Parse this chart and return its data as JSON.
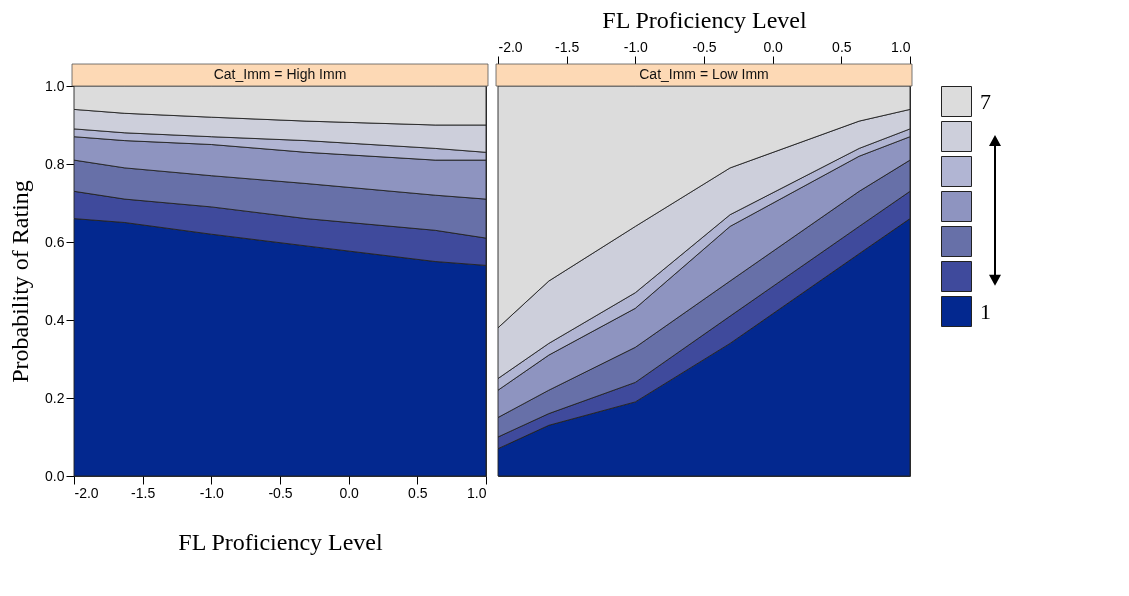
{
  "chart_data": [
    {
      "type": "area",
      "title": "Cat_Imm = High Imm",
      "xlabel": "FL Proficiency Level",
      "ylabel": "Probability of Rating",
      "stacked": true,
      "x": [
        -2,
        -1.63,
        -1,
        -0.31,
        0.63,
        1
      ],
      "xlim": [
        -2,
        1
      ],
      "xticks": [
        {
          "value": -2,
          "label": "-2.0"
        },
        {
          "value": -1.5,
          "label": "-1.5"
        },
        {
          "value": -1,
          "label": "-1.0"
        },
        {
          "value": -0.5,
          "label": "-0.5"
        },
        {
          "value": 0,
          "label": "0.0"
        },
        {
          "value": 0.5,
          "label": "0.5"
        },
        {
          "value": 1,
          "label": "1.0"
        }
      ],
      "ylim": [
        0,
        1
      ],
      "yticks": [
        {
          "value": 0,
          "label": "0.0"
        },
        {
          "value": 0.2,
          "label": "0.2"
        },
        {
          "value": 0.4,
          "label": "0.4"
        },
        {
          "value": 0.6,
          "label": "0.6"
        },
        {
          "value": 0.8,
          "label": "0.8"
        },
        {
          "value": 1,
          "label": "1.0"
        }
      ],
      "series": [
        {
          "color": "#03288f",
          "values": [
            0.66,
            0.65,
            0.62,
            0.59,
            0.55,
            0.54
          ]
        },
        {
          "color": "#3f4a9c",
          "values": [
            0.07,
            0.06,
            0.07,
            0.07,
            0.08,
            0.07
          ]
        },
        {
          "color": "#6770a8",
          "values": [
            0.08,
            0.08,
            0.08,
            0.09,
            0.09,
            0.1
          ]
        },
        {
          "color": "#8e94c0",
          "values": [
            0.06,
            0.07,
            0.08,
            0.08,
            0.09,
            0.1
          ]
        },
        {
          "color": "#b1b5d3",
          "values": [
            0.02,
            0.02,
            0.02,
            0.03,
            0.03,
            0.02
          ]
        },
        {
          "color": "#cdcfdb",
          "values": [
            0.05,
            0.05,
            0.05,
            0.05,
            0.06,
            0.07
          ]
        },
        {
          "color": "#dcdcdc",
          "values": [
            0.06,
            0.07,
            0.08,
            0.09,
            0.1,
            0.1
          ]
        }
      ]
    },
    {
      "type": "area",
      "title": "Cat_Imm = Low Imm",
      "xlabel": "FL Proficiency Level",
      "stacked": true,
      "legend": "right",
      "tick_labels": "x",
      "x": [
        -2,
        -1.63,
        -1,
        -0.31,
        0.63,
        1
      ],
      "xlim": [
        -2,
        1
      ],
      "xticks": [
        {
          "value": -2,
          "label": "-2.0"
        },
        {
          "value": -1.5,
          "label": "-1.5"
        },
        {
          "value": -1,
          "label": "-1.0"
        },
        {
          "value": -0.5,
          "label": "-0.5"
        },
        {
          "value": 0,
          "label": "0.0"
        },
        {
          "value": 0.5,
          "label": "0.5"
        },
        {
          "value": 1,
          "label": "1.0"
        }
      ],
      "ylim": [
        0,
        1
      ],
      "series": [
        {
          "name": "1",
          "color": "#03288f",
          "values": [
            0.07,
            0.13,
            0.19,
            0.34,
            0.57,
            0.66
          ]
        },
        {
          "color": "#3f4a9c",
          "values": [
            0.03,
            0.03,
            0.05,
            0.07,
            0.07,
            0.07
          ]
        },
        {
          "color": "#6770a8",
          "values": [
            0.05,
            0.06,
            0.09,
            0.09,
            0.09,
            0.08
          ]
        },
        {
          "color": "#8e94c0",
          "values": [
            0.07,
            0.09,
            0.1,
            0.14,
            0.09,
            0.06
          ]
        },
        {
          "color": "#b1b5d3",
          "values": [
            0.03,
            0.03,
            0.04,
            0.03,
            0.02,
            0.02
          ]
        },
        {
          "color": "#cdcfdb",
          "values": [
            0.13,
            0.16,
            0.17,
            0.12,
            0.07,
            0.05
          ]
        },
        {
          "name": "7",
          "color": "#dcdcdc",
          "values": [
            0.62,
            0.5,
            0.36,
            0.21,
            0.09,
            0.06
          ]
        }
      ]
    }
  ]
}
